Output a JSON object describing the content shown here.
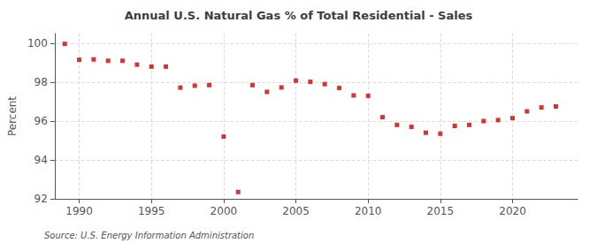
{
  "chart_data": {
    "type": "scatter",
    "title": "Annual U.S. Natural Gas % of Total Residential - Sales",
    "y_label": "Percent",
    "annotations": [
      "Source: U.S. Energy Information Administration"
    ],
    "x": [
      1989,
      1990,
      1991,
      1992,
      1993,
      1994,
      1995,
      1996,
      1997,
      1998,
      1999,
      2000,
      2001,
      2002,
      2003,
      2004,
      2005,
      2006,
      2007,
      2008,
      2009,
      2010,
      2011,
      2012,
      2013,
      2014,
      2015,
      2016,
      2017,
      2018,
      2019,
      2020,
      2021,
      2022,
      2023
    ],
    "values": [
      99.97,
      99.15,
      99.17,
      99.1,
      99.1,
      98.9,
      98.8,
      98.8,
      97.72,
      97.82,
      97.85,
      95.2,
      92.35,
      97.85,
      97.5,
      97.73,
      98.08,
      98.02,
      97.9,
      97.7,
      97.32,
      97.3,
      96.2,
      95.8,
      95.7,
      95.4,
      95.35,
      95.75,
      95.8,
      96.0,
      96.05,
      96.15,
      96.5,
      96.7,
      96.75
    ],
    "xlim": [
      1988.3,
      2024.5
    ],
    "ylim": [
      92,
      100.5
    ],
    "xticks": [
      1990,
      1995,
      2000,
      2005,
      2010,
      2015,
      2020
    ],
    "yticks": [
      92,
      94,
      96,
      98,
      100
    ],
    "grid": true,
    "color": "#cc0000",
    "marker": "square"
  }
}
